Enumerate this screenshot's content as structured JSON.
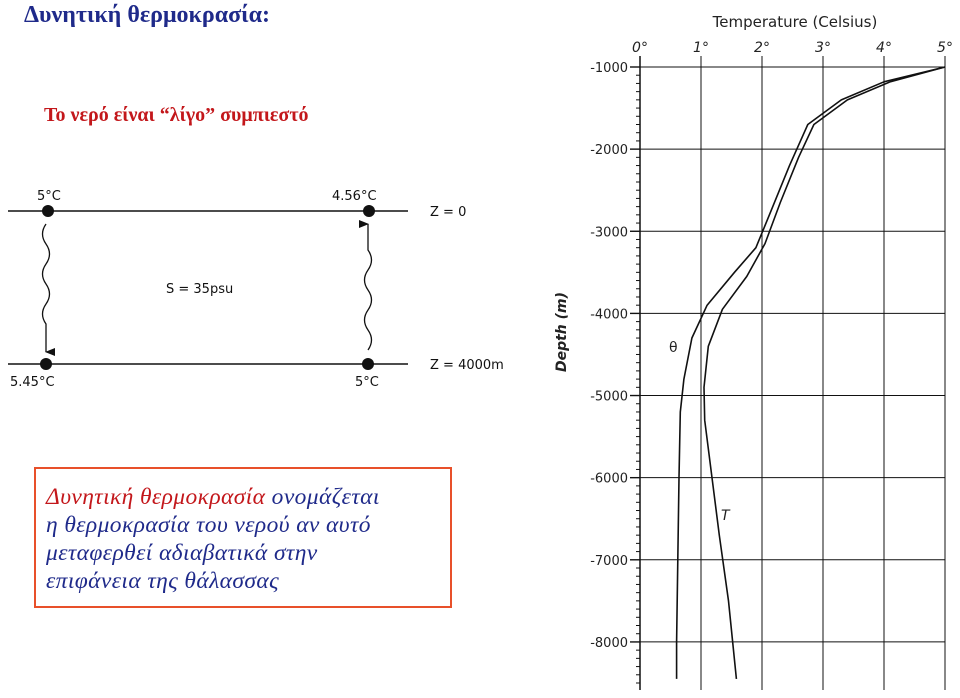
{
  "slide": {
    "title": "Δυνητική θερμοκρασία:",
    "subtitle": "Το νερό είναι “λίγο” συμπιεστό"
  },
  "schematic": {
    "top_left_temp": "5°C",
    "top_right_temp": "4.56°C",
    "bottom_left_temp": "5.45°C",
    "bottom_right_temp": "5°C",
    "salinity": "S = 35psu",
    "surface_depth": "Z = 0",
    "deep_depth": "Z = 4000m"
  },
  "definition": {
    "term": "Δυνητική θερμοκρασία",
    "line1_rest": " ονομάζεται",
    "line2": "η θερμοκρασία του νερού αν αυτό",
    "line3": "μεταφερθεί αδιαβατικά στην",
    "line4": "επιφάνεια της θάλασσας"
  },
  "chart_data": {
    "type": "line",
    "title": "Temperature (Celsius)",
    "xlabel": "Temperature (Celsius)",
    "ylabel": "Depth (m)",
    "xlim": [
      0,
      5
    ],
    "ylim": [
      -8500,
      -1000
    ],
    "x_ticks": [
      0,
      1,
      2,
      3,
      4,
      5
    ],
    "x_tick_labels": [
      "0°",
      "1°",
      "2°",
      "3°",
      "4°",
      "5°"
    ],
    "y_ticks": [
      -1000,
      -2000,
      -3000,
      -4000,
      -5000,
      -6000,
      -7000,
      -8000
    ],
    "y_tick_labels": [
      "-1000",
      "-2000",
      "-3000",
      "-4000",
      "-5000",
      "-6000",
      "-7000",
      "-8000"
    ],
    "grid": true,
    "series": [
      {
        "name": "θ",
        "points": [
          [
            5.0,
            -1000
          ],
          [
            4.0,
            -1180
          ],
          [
            3.3,
            -1400
          ],
          [
            2.75,
            -1700
          ],
          [
            2.45,
            -2200
          ],
          [
            2.15,
            -2750
          ],
          [
            1.9,
            -3200
          ],
          [
            1.55,
            -3500
          ],
          [
            1.1,
            -3900
          ],
          [
            0.85,
            -4300
          ],
          [
            0.72,
            -4800
          ],
          [
            0.66,
            -5200
          ],
          [
            0.64,
            -6000
          ],
          [
            0.62,
            -7000
          ],
          [
            0.6,
            -8000
          ],
          [
            0.6,
            -8450
          ]
        ]
      },
      {
        "name": "T",
        "points": [
          [
            5.0,
            -1000
          ],
          [
            4.1,
            -1180
          ],
          [
            3.4,
            -1400
          ],
          [
            2.85,
            -1700
          ],
          [
            2.6,
            -2100
          ],
          [
            2.3,
            -2650
          ],
          [
            2.05,
            -3150
          ],
          [
            1.75,
            -3550
          ],
          [
            1.35,
            -3950
          ],
          [
            1.12,
            -4400
          ],
          [
            1.05,
            -4900
          ],
          [
            1.06,
            -5300
          ],
          [
            1.18,
            -6000
          ],
          [
            1.3,
            -6700
          ],
          [
            1.45,
            -7500
          ],
          [
            1.58,
            -8450
          ]
        ]
      }
    ]
  }
}
